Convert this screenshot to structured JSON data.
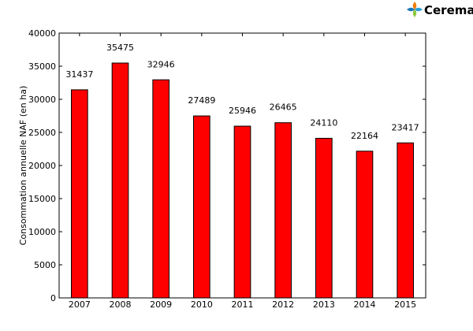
{
  "logo": {
    "text": "Cerema",
    "colors": {
      "text": "#f07d00",
      "leaf1": "#f07d00",
      "leaf2": "#2a9fd6",
      "leaf3": "#8dc63f",
      "leaf4": "#1b75bb"
    }
  },
  "chart_data": {
    "type": "bar",
    "categories": [
      "2007",
      "2008",
      "2009",
      "2010",
      "2011",
      "2012",
      "2013",
      "2014",
      "2015"
    ],
    "values": [
      31437,
      35475,
      32946,
      27489,
      25946,
      26465,
      24110,
      22164,
      23417
    ],
    "ylabel": "Consommation annuelle NAF (en ha)",
    "xlabel": "",
    "ylim": [
      0,
      40000
    ],
    "yticks": [
      0,
      5000,
      10000,
      15000,
      20000,
      25000,
      30000,
      35000,
      40000
    ],
    "bar_color": "#ff0000",
    "data_labels": true,
    "grid": false
  }
}
